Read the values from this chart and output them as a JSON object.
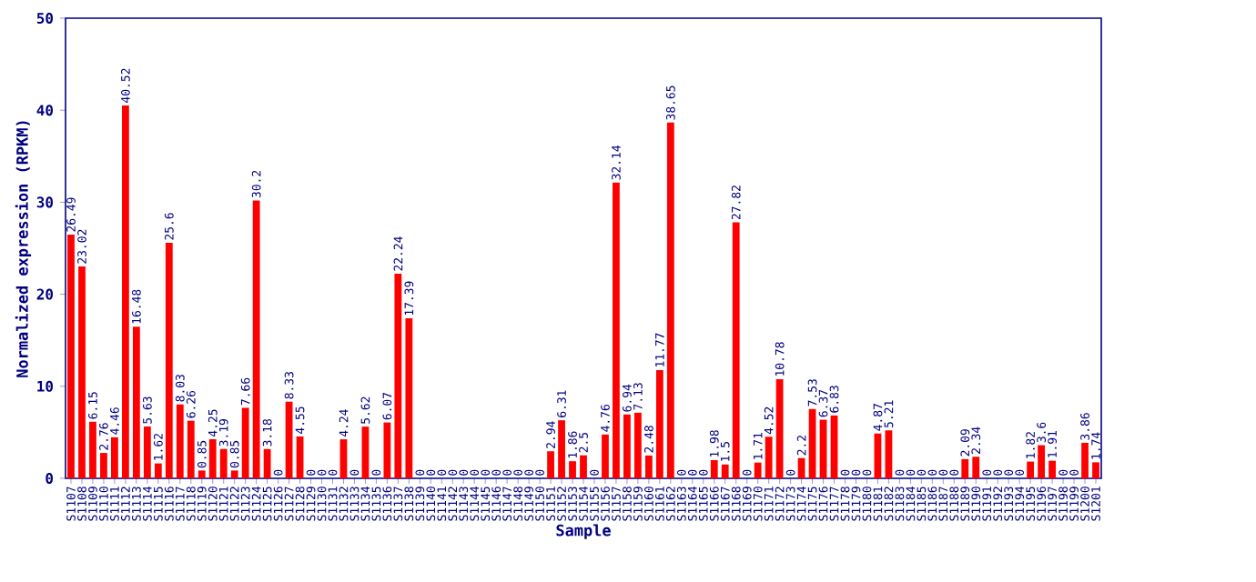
{
  "chart_data": {
    "type": "bar",
    "xlabel": "Sample",
    "ylabel": "Normalized expression (RPKM)",
    "categories": [
      "S1107",
      "S1108",
      "S1109",
      "S1110",
      "S1111",
      "S1112",
      "S1113",
      "S1114",
      "S1115",
      "S1116",
      "S1117",
      "S1118",
      "S1119",
      "S1120",
      "S1121",
      "S1122",
      "S1123",
      "S1124",
      "S1125",
      "S1126",
      "S1127",
      "S1128",
      "S1129",
      "S1130",
      "S1131",
      "S1132",
      "S1133",
      "S1134",
      "S1135",
      "S1136",
      "S1137",
      "S1138",
      "S1139",
      "S1140",
      "S1141",
      "S1142",
      "S1143",
      "S1144",
      "S1145",
      "S1146",
      "S1147",
      "S1148",
      "S1149",
      "S1150",
      "S1151",
      "S1152",
      "S1153",
      "S1154",
      "S1155",
      "S1156",
      "S1157",
      "S1158",
      "S1159",
      "S1160",
      "S1161",
      "S1162",
      "S1163",
      "S1164",
      "S1165",
      "S1166",
      "S1167",
      "S1168",
      "S1169",
      "S1170",
      "S1171",
      "S1172",
      "S1173",
      "S1174",
      "S1175",
      "S1176",
      "S1177",
      "S1178",
      "S1179",
      "S1180",
      "S1181",
      "S1182",
      "S1183",
      "S1184",
      "S1185",
      "S1186",
      "S1187",
      "S1188",
      "S1189",
      "S1190",
      "S1191",
      "S1192",
      "S1193",
      "S1194",
      "S1195",
      "S1196",
      "S1197",
      "S1198",
      "S1199",
      "S1200",
      "S1201"
    ],
    "values": [
      26.49,
      23.02,
      6.15,
      2.76,
      4.46,
      40.52,
      16.48,
      5.63,
      1.62,
      25.6,
      8.03,
      6.26,
      0.85,
      4.25,
      3.19,
      0.85,
      7.66,
      30.2,
      3.18,
      0,
      8.33,
      4.55,
      0,
      0,
      0,
      4.24,
      0,
      5.62,
      0,
      6.07,
      22.24,
      17.39,
      0,
      0,
      0,
      0,
      0,
      0,
      0,
      0,
      0,
      0,
      0,
      0,
      2.94,
      6.31,
      1.86,
      2.5,
      0,
      4.76,
      32.14,
      6.94,
      7.13,
      2.48,
      11.77,
      38.65,
      0,
      0,
      0,
      1.98,
      1.5,
      27.82,
      0,
      1.71,
      4.52,
      10.78,
      0,
      2.2,
      7.53,
      6.37,
      6.83,
      0,
      0,
      0,
      4.87,
      5.21,
      0,
      0,
      0,
      0,
      0,
      0,
      2.09,
      2.34,
      0,
      0,
      0,
      0,
      1.82,
      3.6,
      1.91,
      0,
      0,
      3.86,
      1.74
    ],
    "color": "#ff0000",
    "ylim": [
      0,
      50
    ],
    "yticks": [
      0,
      10,
      20,
      30,
      40,
      50
    ],
    "data_labels": true
  }
}
